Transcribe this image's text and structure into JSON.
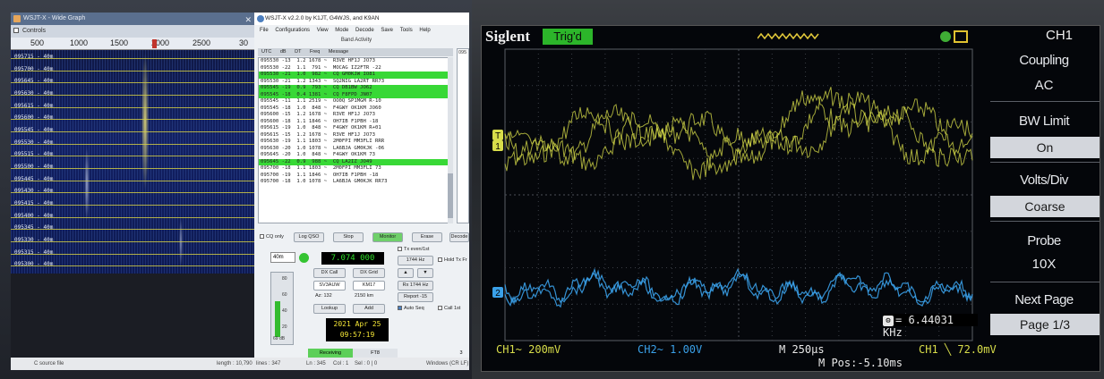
{
  "wide_graph": {
    "title": "WSJT-X - Wide Graph",
    "controls_label": "Controls",
    "scale_ticks": [
      "500",
      "1000",
      "1500",
      "2000",
      "2500",
      "30"
    ],
    "rows": [
      {
        "time": "095715",
        "band": "40m"
      },
      {
        "time": "095700",
        "band": "40m"
      },
      {
        "time": "095645",
        "band": "40m"
      },
      {
        "time": "095630",
        "band": "40m"
      },
      {
        "time": "095615",
        "band": "40m"
      },
      {
        "time": "095600",
        "band": "40m"
      },
      {
        "time": "095545",
        "band": "40m"
      },
      {
        "time": "095530",
        "band": "40m"
      },
      {
        "time": "095515",
        "band": "40m"
      },
      {
        "time": "095500",
        "band": "40m"
      },
      {
        "time": "095445",
        "band": "40m"
      },
      {
        "time": "095430",
        "band": "40m"
      },
      {
        "time": "095415",
        "band": "40m"
      },
      {
        "time": "095400",
        "band": "40m"
      },
      {
        "time": "095345",
        "band": "40m"
      },
      {
        "time": "095330",
        "band": "40m"
      },
      {
        "time": "095315",
        "band": "40m"
      },
      {
        "time": "095300",
        "band": "40m"
      }
    ]
  },
  "editor_status": {
    "left": "C source file",
    "length": "length : 10,790",
    "lines": "lines : 347",
    "ln": "Ln : 345",
    "col": "Col : 1",
    "sel": "Sel : 0 | 0",
    "eol": "Windows (CR LF)"
  },
  "wsjtx": {
    "title": "WSJT-X   v2.2.0   by K1JT, G4WJS, and K9AN",
    "menu": [
      "File",
      "Configurations",
      "View",
      "Mode",
      "Decode",
      "Save",
      "Tools",
      "Help"
    ],
    "band_activity_title": "Band Activity",
    "list_headers": [
      "UTC",
      "dB",
      "DT",
      "Freq",
      "Message"
    ],
    "decodes": [
      {
        "text": "095530 -13  1.2 1678 ~  R3VE HF1J JO73",
        "cq": false
      },
      {
        "text": "095530 -22  1.1  791 ~  MOCAG IZ2FTR -22",
        "cq": false
      },
      {
        "text": "095530 -21  1.0  982 ~  CQ GM0KJW IO81",
        "cq": true
      },
      {
        "text": "095530 -21  1.2 1343 ~  SQ2NIG LA2RT RR73",
        "cq": false
      },
      {
        "text": "095545 -19  0.9  793 ~  CQ DB1BW JO62",
        "cq": true
      },
      {
        "text": "095545 -18  0.4 1381 ~  CQ F8FPD JN07",
        "cq": true
      },
      {
        "text": "095545 -11  1.1 2519 ~  OO0Q SP1MGM R-10",
        "cq": false
      },
      {
        "text": "095545 -18  1.0  848 ~  F4GWY OK1KM JO60",
        "cq": false
      },
      {
        "text": "095600 -15  1.2 1678 ~  R3VE HF1J JO73",
        "cq": false
      },
      {
        "text": "095600 -18  1.1 1846 ~  OH7IB F1PBH -18",
        "cq": false
      },
      {
        "text": "095615 -19  1.0  848 ~  F4GWY OK1KM R+01",
        "cq": false
      },
      {
        "text": "095615 -15  1.2 1678 ~  R3VE HF1J JO73",
        "cq": false
      },
      {
        "text": "095630 -19  1.1 1803 ~  2M0FPI MM3FLI RRR",
        "cq": false
      },
      {
        "text": "095630 -20  1.0 1078 ~  LA6BJA GM0KJK -06",
        "cq": false
      },
      {
        "text": "095645 -20  1.0  848 ~  F4GWY OK1KM 73",
        "cq": false
      },
      {
        "text": "095645 -22  0.9  988 ~  CQ LA2IZ JO49",
        "cq": true
      },
      {
        "text": "095700 -18  1.1 1803 ~  2M0FPI MM3FLI 73",
        "cq": false
      },
      {
        "text": "095700 -19  1.1 1846 ~  OH7IB F1PBH -18",
        "cq": false
      },
      {
        "text": "095700 -18  1.0 1078 ~  LA6BJA GM0KJK RR73",
        "cq": false
      }
    ],
    "rx_panel_label": "095",
    "cq_only": "CQ only",
    "log_qso": "Log QSO",
    "stop": "Stop",
    "monitor": "Monitor",
    "erase": "Erase",
    "decode": "Decode",
    "band": "40m",
    "frequency": "7.074 000",
    "tx_even": "Tx even/1st",
    "tx_hz": "1744 Hz",
    "hold_tx": "Hold Tx Fr",
    "dx_call_label": "DX Call",
    "dx_grid_label": "DX Grid",
    "dx_call": "SV3AUW",
    "dx_grid": "KM17",
    "rx_hz": "Rx  1744 Hz",
    "az": "Az: 132",
    "dist": "2150 km",
    "report": "Report -15",
    "lookup": "Lookup",
    "add": "Add",
    "auto_seq": "Auto Seq",
    "call_1st": "Call 1st",
    "meter_ticks": [
      "80",
      "60",
      "40",
      "20"
    ],
    "meter_db": "69 dB",
    "date": "2021 Apr 25",
    "time": "09:57:19",
    "status_receiving": "Receiving",
    "status_mode": "FT8",
    "status_num": "3",
    "colors": {
      "decode_cq": "#38d836",
      "freq_text": "#2ee02b",
      "clock_text": "#f2e436"
    }
  },
  "scope": {
    "brand": "Siglent",
    "trigger_status": "Trig'd",
    "menu_channel": "CH1",
    "menu": {
      "coupling_label": "Coupling",
      "coupling_value": "AC",
      "bw_limit_label": "BW Limit",
      "bw_limit_value": "On",
      "volts_div_label": "Volts/Div",
      "volts_div_value": "Coarse",
      "probe_label": "Probe",
      "probe_value": "10X",
      "next_page_label": "Next Page",
      "next_page_value": "Page 1/3"
    },
    "ch1_marker": "1",
    "ch2_marker": "2",
    "trigger_marker": "T",
    "frequency_readout": "= 6.44031 KHz",
    "ch1_scale": "CH1~ 200mV",
    "ch2_scale": "CH2~ 1.00V",
    "timebase": "M 250μs",
    "trigger_level": "CH1 ╲ 72.0mV",
    "mpos": "M Pos:-5.10ms",
    "colors": {
      "ch1": "#d8dd4a",
      "ch2": "#3aa0e8",
      "trig_badge": "#2cb52a"
    }
  }
}
